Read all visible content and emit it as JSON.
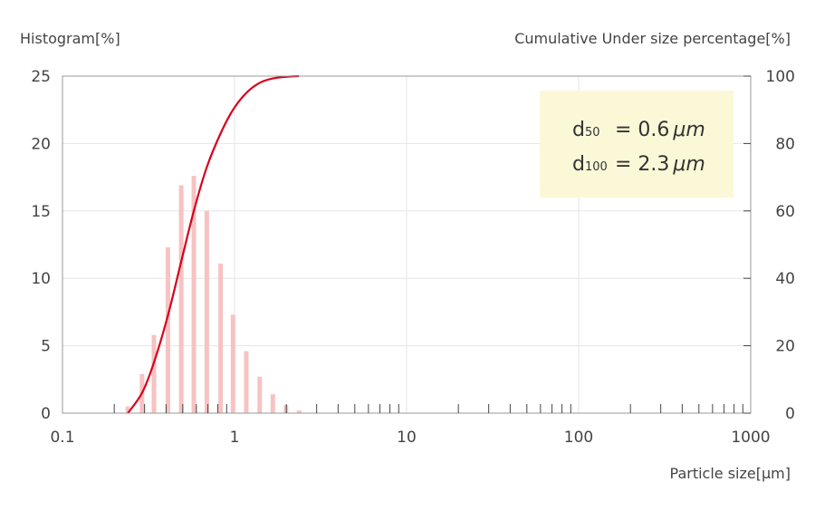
{
  "chart_data": {
    "type": "bar",
    "x_scale": "log",
    "xlim": [
      0.1,
      1000
    ],
    "xticks": [
      "0.1",
      "1",
      "10",
      "100",
      "1000"
    ],
    "xlabel": "Particle size[µm]",
    "y_left": {
      "label": "Histogram[%]",
      "ylim": [
        0,
        25
      ],
      "ticks": [
        "0",
        "5",
        "10",
        "15",
        "20",
        "25"
      ]
    },
    "y_right": {
      "label": "Cumulative Under size percentage[%]",
      "ylim": [
        0,
        100
      ],
      "ticks": [
        "0",
        "20",
        "40",
        "60",
        "80",
        "100"
      ]
    },
    "grid": true,
    "histogram": {
      "x": [
        0.24,
        0.29,
        0.34,
        0.41,
        0.49,
        0.58,
        0.69,
        0.83,
        0.98,
        1.17,
        1.4,
        1.67,
        1.99,
        2.37
      ],
      "values": [
        0.5,
        2.9,
        5.8,
        12.3,
        16.9,
        17.6,
        15.0,
        11.1,
        7.3,
        4.6,
        2.7,
        1.4,
        0.6,
        0.2
      ],
      "color": "#f7c2c2"
    },
    "cumulative": {
      "x": [
        0.24,
        0.29,
        0.34,
        0.41,
        0.49,
        0.58,
        0.69,
        0.83,
        0.98,
        1.17,
        1.4,
        1.67,
        1.99,
        2.37
      ],
      "values": [
        0,
        6,
        15,
        29,
        45,
        60,
        73,
        83,
        90,
        95,
        98,
        99.3,
        99.8,
        100
      ],
      "color": "#d7001c"
    },
    "annotation": {
      "d50_label": "d",
      "d50_sub": "50",
      "d50_value": "= 0.6",
      "d100_label": "d",
      "d100_sub": "100",
      "d100_value": "= 2.3",
      "unit": "μm",
      "background": "#fbf8d8",
      "position": "top-right"
    }
  }
}
